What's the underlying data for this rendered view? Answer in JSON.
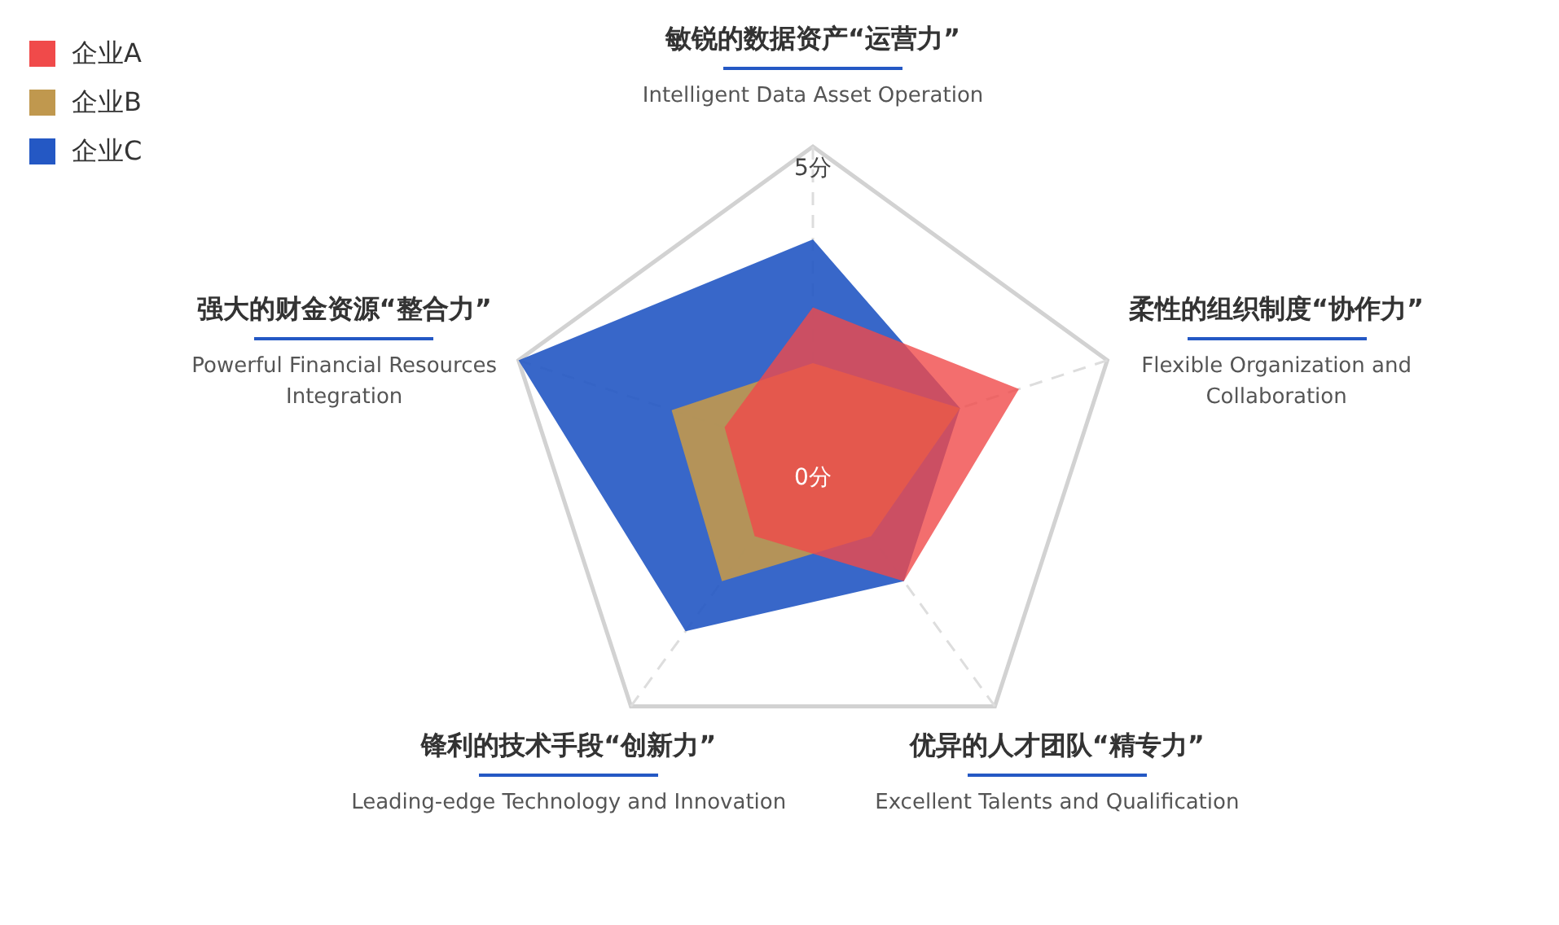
{
  "chart_data": {
    "type": "radar",
    "categories": [
      "敏锐的数据资产“运营力”\nIntelligent Data Asset Operation",
      "柔性的组织制度“协作力”\nFlexible Organization and\nCollaboration",
      "优异的人才团队“精专力”\nExcellent Talents and Qualification",
      "锋利的技术手段“创新力”\nLeading-edge Technology and Innovation",
      "强大的财金资源“整合力”\nPowerful Financial Resources\nIntegration"
    ],
    "series": [
      {
        "name": "企业A",
        "color": "#f04a4a",
        "values": [
          2.4,
          3.5,
          2.5,
          1.6,
          1.5
        ]
      },
      {
        "name": "企业B",
        "color": "#c0984e",
        "values": [
          1.5,
          2.5,
          1.6,
          2.5,
          2.4
        ]
      },
      {
        "name": "企业C",
        "color": "#2458c4",
        "values": [
          3.5,
          2.5,
          2.5,
          3.5,
          5
        ]
      }
    ],
    "ylim": [
      0,
      5
    ],
    "yticks": [
      {
        "value": 0,
        "label": "0分"
      },
      {
        "value": 5,
        "label": "5分"
      }
    ],
    "grid": true,
    "legend": "top left",
    "marker": "none"
  }
}
